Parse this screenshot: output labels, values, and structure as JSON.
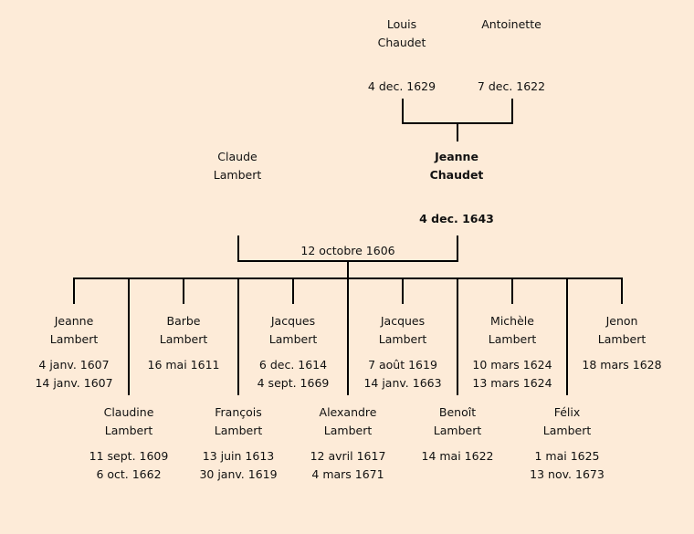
{
  "grandparents": [
    {
      "first": "Louis",
      "last": "Chaudet",
      "dates": [
        "4 dec. 1629"
      ]
    },
    {
      "first": "Antoinette",
      "last": "",
      "dates": [
        "7 dec. 1622"
      ]
    }
  ],
  "parents": [
    {
      "first": "Claude",
      "last": "Lambert",
      "dates": []
    },
    {
      "first": "Jeanne",
      "last": "Chaudet",
      "dates": [
        "4 dec. 1643"
      ],
      "bold": true
    }
  ],
  "marriage_date": "12 octobre 1606",
  "children": [
    {
      "first": "Jeanne",
      "last": "Lambert",
      "dates": [
        "4 janv. 1607",
        "14 janv. 1607"
      ]
    },
    {
      "first": "Claudine",
      "last": "Lambert",
      "dates": [
        "11 sept. 1609",
        "6 oct. 1662"
      ]
    },
    {
      "first": "Barbe",
      "last": "Lambert",
      "dates": [
        "16 mai 1611"
      ]
    },
    {
      "first": "François",
      "last": "Lambert",
      "dates": [
        "13 juin 1613",
        "30 janv. 1619"
      ]
    },
    {
      "first": "Jacques",
      "last": "Lambert",
      "dates": [
        "6 dec. 1614",
        "4 sept. 1669"
      ]
    },
    {
      "first": "Alexandre",
      "last": "Lambert",
      "dates": [
        "12 avril 1617",
        "4 mars 1671"
      ]
    },
    {
      "first": "Jacques",
      "last": "Lambert",
      "dates": [
        "7 août 1619",
        "14 janv. 1663"
      ]
    },
    {
      "first": "Benoît",
      "last": "Lambert",
      "dates": [
        "14 mai 1622"
      ]
    },
    {
      "first": "Michèle",
      "last": "Lambert",
      "dates": [
        "10 mars 1624",
        "13 mars 1624"
      ]
    },
    {
      "first": "Félix",
      "last": "Lambert",
      "dates": [
        "1 mai 1625",
        "13 nov. 1673"
      ]
    },
    {
      "first": "Jenon",
      "last": "Lambert",
      "dates": [
        "18 mars 1628"
      ]
    }
  ]
}
